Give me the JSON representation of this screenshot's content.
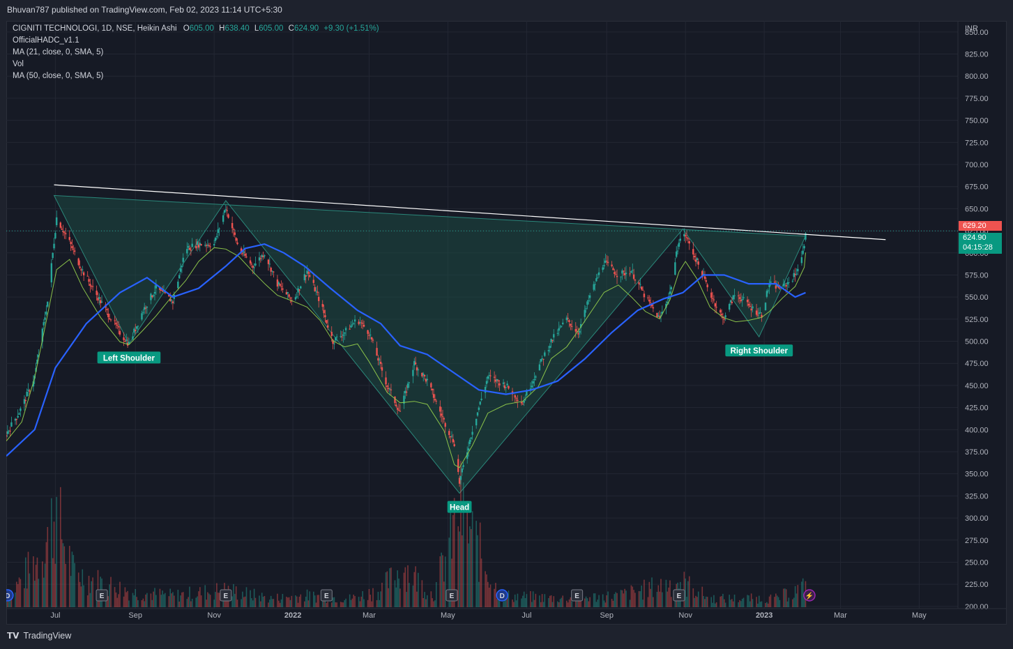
{
  "header": {
    "published": "Bhuvan787 published on TradingView.com, Feb 02, 2023 11:14 UTC+5:30"
  },
  "legend": {
    "symbol": "CIGNITI TECHNOLOGI, 1D, NSE, Heikin Ashi",
    "o_label": "O",
    "o": "605.00",
    "h_label": "H",
    "h": "638.40",
    "l_label": "L",
    "l": "605.00",
    "c_label": "C",
    "c": "624.90",
    "change": "+9.30 (+1.51%)",
    "line2": "OfficialHADC_v1.1",
    "line3": "MA (21, close, 0, SMA, 5)",
    "line4": "Vol",
    "line5": "MA (50, close, 0, SMA, 5)"
  },
  "price_tags": {
    "high": "629.20",
    "last": "624.90",
    "countdown": "04:15:28"
  },
  "event_markers": [
    "D",
    "E",
    "E",
    "E",
    "E",
    "D",
    "E",
    "E"
  ],
  "footer": {
    "brand": "TradingView"
  },
  "colors": {
    "up": "#26a69a",
    "down": "#ef5350",
    "ma50": "#2962ff",
    "ma21": "#8bc34a",
    "pattern_fill": "#1d4a44",
    "neckline": "#ffffff",
    "label_bg": "#089981"
  },
  "chart_data": {
    "type": "candlestick",
    "style": "Heikin Ashi",
    "currency": "INR",
    "y_axis_ticks": [
      850,
      825,
      800,
      775,
      750,
      725,
      700,
      675,
      650,
      625,
      600,
      575,
      550,
      525,
      500,
      475,
      450,
      425,
      400,
      375,
      350,
      325,
      300,
      275,
      250,
      225,
      200
    ],
    "y_tick_labels": [
      "850.00",
      "825.00",
      "800.00",
      "775.00",
      "750.00",
      "725.00",
      "700.00",
      "675.00",
      "650.00",
      "625.00",
      "600.00",
      "575.00",
      "550.00",
      "525.00",
      "500.00",
      "475.00",
      "450.00",
      "425.00",
      "400.00",
      "375.00",
      "350.00",
      "325.00",
      "300.00",
      "275.00",
      "250.00",
      "225.00",
      "200.00"
    ],
    "ylim": [
      200,
      850
    ],
    "x_axis_labels": [
      "Jul",
      "Sep",
      "Nov",
      "2022",
      "Mar",
      "May",
      "Jul",
      "Sep",
      "Nov",
      "2023",
      "Mar",
      "May"
    ],
    "x_axis_dates": [
      "2021-07-01",
      "2021-09-01",
      "2021-11-01",
      "2022-01-01",
      "2022-03-01",
      "2022-05-01",
      "2022-07-01",
      "2022-09-01",
      "2022-11-01",
      "2023-01-01",
      "2023-03-01",
      "2023-05-01"
    ],
    "x_range": [
      "2021-05-24",
      "2023-05-31"
    ],
    "price_path": [
      [
        "2021-05-24",
        395
      ],
      [
        "2021-06-05",
        425
      ],
      [
        "2021-06-15",
        460
      ],
      [
        "2021-06-25",
        545
      ],
      [
        "2021-07-02",
        640
      ],
      [
        "2021-07-12",
        612
      ],
      [
        "2021-07-22",
        580
      ],
      [
        "2021-08-05",
        545
      ],
      [
        "2021-08-20",
        510
      ],
      [
        "2021-08-27",
        497
      ],
      [
        "2021-09-07",
        535
      ],
      [
        "2021-09-17",
        560
      ],
      [
        "2021-09-30",
        545
      ],
      [
        "2021-10-10",
        605
      ],
      [
        "2021-10-20",
        610
      ],
      [
        "2021-11-01",
        610
      ],
      [
        "2021-11-10",
        652
      ],
      [
        "2021-11-20",
        605
      ],
      [
        "2021-12-01",
        585
      ],
      [
        "2021-12-10",
        600
      ],
      [
        "2021-12-20",
        565
      ],
      [
        "2022-01-01",
        545
      ],
      [
        "2022-01-12",
        580
      ],
      [
        "2022-01-22",
        545
      ],
      [
        "2022-02-01",
        500
      ],
      [
        "2022-02-10",
        510
      ],
      [
        "2022-02-20",
        525
      ],
      [
        "2022-03-01",
        510
      ],
      [
        "2022-03-15",
        450
      ],
      [
        "2022-03-25",
        420
      ],
      [
        "2022-04-05",
        475
      ],
      [
        "2022-04-15",
        455
      ],
      [
        "2022-04-28",
        410
      ],
      [
        "2022-05-06",
        385
      ],
      [
        "2022-05-10",
        340
      ],
      [
        "2022-05-20",
        400
      ],
      [
        "2022-06-01",
        460
      ],
      [
        "2022-06-15",
        450
      ],
      [
        "2022-06-28",
        430
      ],
      [
        "2022-07-10",
        470
      ],
      [
        "2022-07-20",
        500
      ],
      [
        "2022-08-01",
        525
      ],
      [
        "2022-08-10",
        510
      ],
      [
        "2022-08-20",
        555
      ],
      [
        "2022-08-30",
        590
      ],
      [
        "2022-09-10",
        575
      ],
      [
        "2022-09-20",
        580
      ],
      [
        "2022-10-01",
        550
      ],
      [
        "2022-10-12",
        525
      ],
      [
        "2022-10-20",
        555
      ],
      [
        "2022-10-27",
        615
      ],
      [
        "2022-11-01",
        620
      ],
      [
        "2022-11-10",
        590
      ],
      [
        "2022-11-20",
        555
      ],
      [
        "2022-11-30",
        525
      ],
      [
        "2022-12-10",
        555
      ],
      [
        "2022-12-20",
        540
      ],
      [
        "2022-12-30",
        530
      ],
      [
        "2023-01-05",
        565
      ],
      [
        "2023-01-15",
        560
      ],
      [
        "2023-01-25",
        575
      ],
      [
        "2023-02-01",
        605
      ],
      [
        "2023-02-02",
        625
      ]
    ],
    "ma50_path": [
      [
        "2021-05-24",
        370
      ],
      [
        "2021-06-15",
        400
      ],
      [
        "2021-07-01",
        470
      ],
      [
        "2021-07-25",
        520
      ],
      [
        "2021-08-20",
        555
      ],
      [
        "2021-09-10",
        572
      ],
      [
        "2021-09-30",
        550
      ],
      [
        "2021-10-20",
        560
      ],
      [
        "2021-11-10",
        585
      ],
      [
        "2021-11-25",
        605
      ],
      [
        "2021-12-10",
        610
      ],
      [
        "2021-12-25",
        600
      ],
      [
        "2022-01-10",
        585
      ],
      [
        "2022-01-30",
        560
      ],
      [
        "2022-02-20",
        535
      ],
      [
        "2022-03-10",
        520
      ],
      [
        "2022-03-25",
        495
      ],
      [
        "2022-04-15",
        485
      ],
      [
        "2022-05-05",
        465
      ],
      [
        "2022-05-25",
        445
      ],
      [
        "2022-06-15",
        440
      ],
      [
        "2022-07-05",
        445
      ],
      [
        "2022-07-25",
        455
      ],
      [
        "2022-08-15",
        480
      ],
      [
        "2022-09-05",
        510
      ],
      [
        "2022-09-25",
        535
      ],
      [
        "2022-10-15",
        548
      ],
      [
        "2022-10-30",
        555
      ],
      [
        "2022-11-15",
        575
      ],
      [
        "2022-12-01",
        575
      ],
      [
        "2022-12-20",
        565
      ],
      [
        "2023-01-10",
        565
      ],
      [
        "2023-01-25",
        550
      ],
      [
        "2023-02-02",
        555
      ]
    ],
    "volume_path": [
      [
        "2021-05-24",
        15
      ],
      [
        "2021-06-20",
        90
      ],
      [
        "2021-07-01",
        165
      ],
      [
        "2021-07-15",
        60
      ],
      [
        "2021-08-01",
        45
      ],
      [
        "2021-09-01",
        25
      ],
      [
        "2021-10-01",
        20
      ],
      [
        "2021-11-10",
        30
      ],
      [
        "2021-12-15",
        15
      ],
      [
        "2022-01-10",
        20
      ],
      [
        "2022-02-15",
        15
      ],
      [
        "2022-03-10",
        30
      ],
      [
        "2022-03-28",
        70
      ],
      [
        "2022-04-20",
        20
      ],
      [
        "2022-05-10",
        170
      ],
      [
        "2022-06-10",
        20
      ],
      [
        "2022-08-01",
        15
      ],
      [
        "2022-09-10",
        20
      ],
      [
        "2022-10-28",
        45
      ],
      [
        "2022-11-20",
        15
      ],
      [
        "2023-01-10",
        15
      ],
      [
        "2023-02-02",
        35
      ]
    ],
    "annotations": [
      {
        "text": "Left Shoulder",
        "date": "2021-08-27",
        "price": 497
      },
      {
        "text": "Head",
        "date": "2022-05-10",
        "price": 328
      },
      {
        "text": "Right Shoulder",
        "date": "2022-12-28",
        "price": 505
      }
    ],
    "neckline": [
      [
        "2021-06-30",
        677
      ],
      [
        "2023-04-05",
        615
      ]
    ],
    "last_price_line": 624.9,
    "grid": true
  }
}
